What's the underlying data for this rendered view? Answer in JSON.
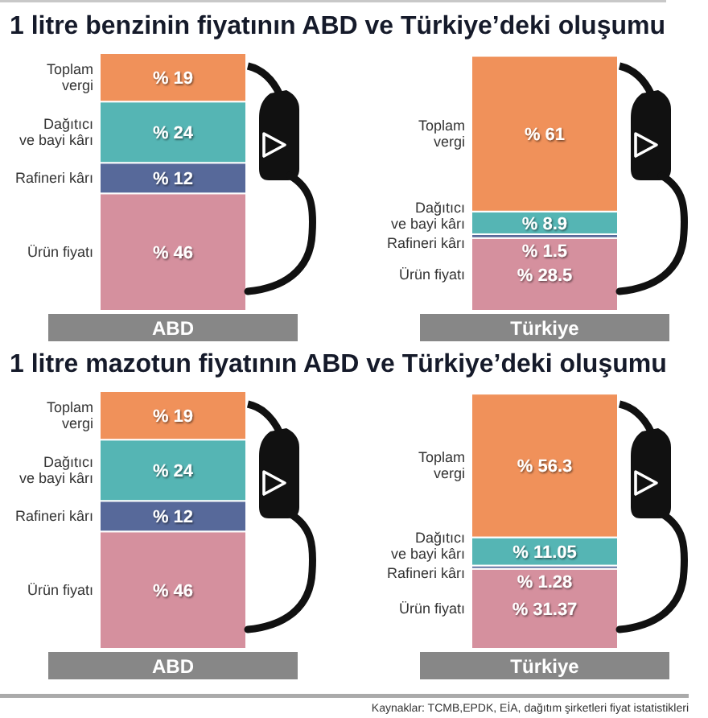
{
  "chart_data": [
    {
      "type": "bar",
      "title": "1 litre benzinin fiyatının ABD ve Türkiye’deki oluşumu",
      "categories": [
        "ABD",
        "Türkiye"
      ],
      "stacked": true,
      "series": [
        {
          "name": "Ürün fiyatı",
          "color": "#d5909e",
          "values": [
            46,
            28.5
          ],
          "value_labels": [
            "% 46",
            "% 28.5"
          ]
        },
        {
          "name": "Rafineri kârı",
          "color": "#57699a",
          "values": [
            12,
            1.5
          ],
          "value_labels": [
            "% 12",
            "% 1.5"
          ]
        },
        {
          "name": "Dağıtıcı\nve bayi kârı",
          "color": "#55b5b4",
          "values": [
            24,
            8.9
          ],
          "value_labels": [
            "% 24",
            "% 8.9"
          ]
        },
        {
          "name": "Toplam\nvergi",
          "color": "#f0915a",
          "values": [
            19,
            61
          ],
          "value_labels": [
            "% 19",
            "% 61"
          ]
        }
      ]
    },
    {
      "type": "bar",
      "title": "1 litre mazotun fiyatının ABD ve Türkiye’deki oluşumu",
      "categories": [
        "ABD",
        "Türkiye"
      ],
      "stacked": true,
      "series": [
        {
          "name": "Ürün fiyatı",
          "color": "#d5909e",
          "values": [
            46,
            31.37
          ],
          "value_labels": [
            "% 46",
            "% 31.37"
          ]
        },
        {
          "name": "Rafineri kârı",
          "color": "#57699a",
          "values": [
            12,
            1.28
          ],
          "value_labels": [
            "% 12",
            "% 1.28"
          ]
        },
        {
          "name": "Dağıtıcı\nve bayi kârı",
          "color": "#55b5b4",
          "values": [
            24,
            11.05
          ],
          "value_labels": [
            "% 24",
            "% 11.05"
          ]
        },
        {
          "name": "Toplam\nvergi",
          "color": "#f0915a",
          "values": [
            19,
            56.3
          ],
          "value_labels": [
            "% 19",
            "% 56.3"
          ]
        }
      ],
      "annotations": [
        "Kaynaklar: TCMB,EPDK, EİA, dağıtım şirketleri fiyat istatistikleri"
      ]
    }
  ]
}
